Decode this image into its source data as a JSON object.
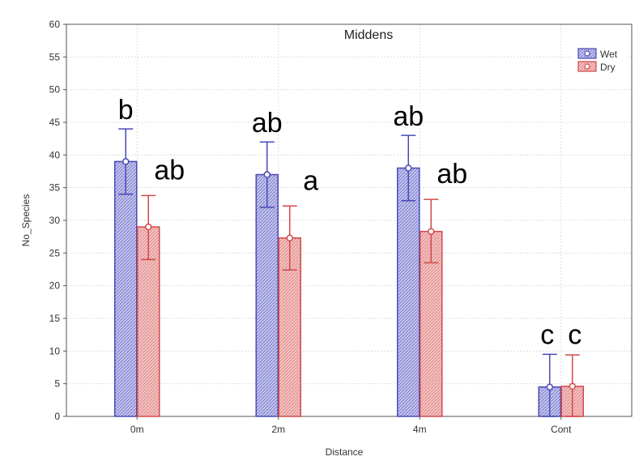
{
  "chart_data": {
    "type": "bar",
    "title": "Middens",
    "xlabel": "Distance",
    "ylabel": "No_Species",
    "categories": [
      "0m",
      "2m",
      "4m",
      "Cont"
    ],
    "ylim": [
      0,
      60
    ],
    "yticks": [
      0,
      5,
      10,
      15,
      20,
      25,
      30,
      35,
      40,
      45,
      50,
      55,
      60
    ],
    "grid": true,
    "legend_position": "top-right",
    "series": [
      {
        "name": "Wet",
        "color": "#4a4ab8",
        "values": [
          39,
          37,
          38,
          4.5
        ],
        "err_low": [
          34,
          32,
          33,
          0
        ],
        "err_high": [
          44,
          42,
          43,
          9.5
        ],
        "labels": [
          "b",
          "ab",
          "ab",
          "c"
        ]
      },
      {
        "name": "Dry",
        "color": "#d24a4a",
        "values": [
          29,
          27.3,
          28.3,
          4.6
        ],
        "err_low": [
          24,
          22.4,
          23.5,
          0
        ],
        "err_high": [
          33.8,
          32.2,
          33.2,
          9.4
        ],
        "labels": [
          "ab",
          "a",
          "ab",
          "c"
        ]
      }
    ]
  }
}
